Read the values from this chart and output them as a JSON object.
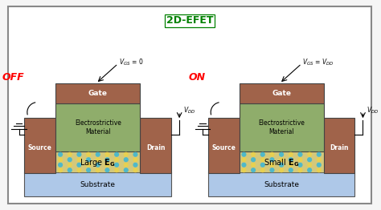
{
  "title": "2D-EFET",
  "bg_color": "#f5f5f5",
  "border_color": "#888888",
  "gate_color": "#a0634a",
  "electrostrictive_color": "#8fad6b",
  "source_drain_color": "#a0634a",
  "substrate_color": "#aec8e8",
  "channel_color1": "#e8d050",
  "channel_color2": "#50b8c8",
  "off_label": "OFF",
  "on_label": "ON",
  "gate_text": "Gate",
  "electro_text": "Electrostrictive\nMaterial",
  "source_text": "Source",
  "drain_text": "Drain",
  "substrate_text": "Substrate"
}
